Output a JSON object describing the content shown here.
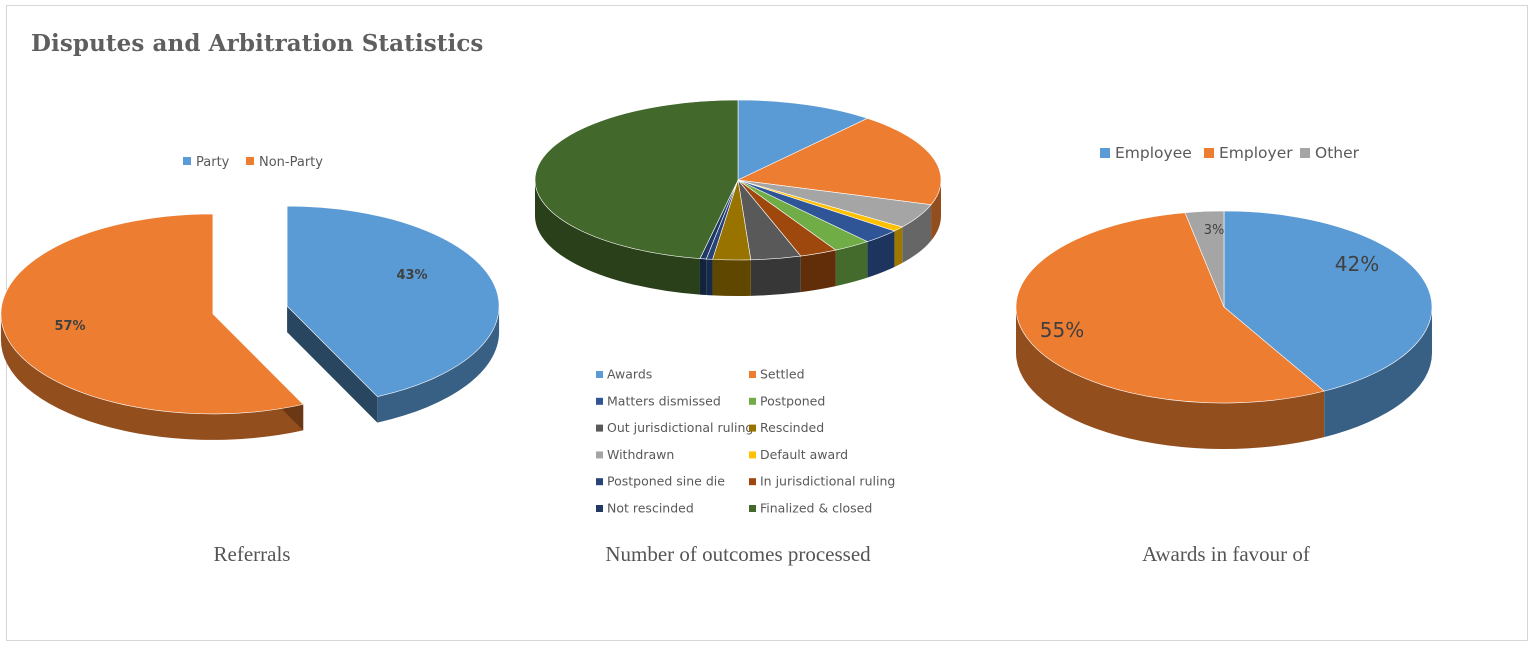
{
  "page": {
    "title": "Disputes and Arbitration Statistics"
  },
  "colors": {
    "blue": "#5b9bd5",
    "orange": "#ed7d31",
    "gray": "#a5a5a5",
    "yellow": "#ffc000",
    "darkblue": "#2f5597",
    "green": "#70ad47",
    "darkgray": "#595959",
    "olive": "#997300",
    "navy": "#1f3864",
    "rust": "#9e480e",
    "darkgreen": "#43682b",
    "text": "#595959"
  },
  "chart_data": [
    {
      "type": "pie",
      "caption": "Referrals",
      "legend_position": "top",
      "series": [
        {
          "name": "Party",
          "value": 43,
          "label": "43%",
          "color": "#5b9bd5"
        },
        {
          "name": "Non-Party",
          "value": 57,
          "label": "57%",
          "color": "#ed7d31"
        }
      ]
    },
    {
      "type": "pie",
      "caption": "Number of outcomes processed",
      "legend_position": "bottom",
      "series": [
        {
          "name": "Awards",
          "value": 11,
          "color": "#5b9bd5"
        },
        {
          "name": "Settled",
          "value": 19,
          "color": "#ed7d31"
        },
        {
          "name": "Withdrawn",
          "value": 5,
          "color": "#a5a5a5"
        },
        {
          "name": "Default award",
          "value": 1,
          "color": "#ffc000"
        },
        {
          "name": "Matters dismissed",
          "value": 3,
          "color": "#2f5597"
        },
        {
          "name": "Postponed",
          "value": 3,
          "color": "#70ad47"
        },
        {
          "name": "In jurisdictional ruling",
          "value": 3,
          "color": "#9e480e"
        },
        {
          "name": "Out jurisdictional ruling",
          "value": 4,
          "color": "#595959"
        },
        {
          "name": "Rescinded",
          "value": 3,
          "color": "#997300"
        },
        {
          "name": "Postponed sine die",
          "value": 0.5,
          "color": "#264478"
        },
        {
          "name": "Not rescinded",
          "value": 0.5,
          "color": "#1f3864"
        },
        {
          "name": "Finalized & closed",
          "value": 47,
          "color": "#43682b"
        }
      ],
      "legend_order": [
        "Awards",
        "Settled",
        "Matters dismissed",
        "Postponed",
        "Out jurisdictional ruling",
        "Rescinded",
        "Withdrawn",
        "Default award",
        "Postponed sine die",
        "In jurisdictional ruling",
        "Not rescinded",
        "Finalized & closed"
      ]
    },
    {
      "type": "pie",
      "caption": "Awards in favour of",
      "legend_position": "top",
      "series": [
        {
          "name": "Employee",
          "value": 42,
          "label": "42%",
          "color": "#5b9bd5"
        },
        {
          "name": "Employer",
          "value": 55,
          "label": "55%",
          "color": "#ed7d31"
        },
        {
          "name": "Other",
          "value": 3,
          "label": "3%",
          "color": "#a5a5a5"
        }
      ]
    }
  ]
}
